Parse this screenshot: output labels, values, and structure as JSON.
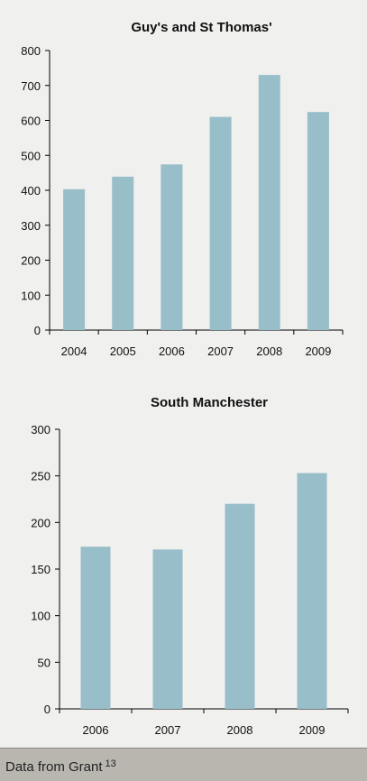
{
  "chart_data": [
    {
      "type": "bar",
      "title": "Guy's and St Thomas'",
      "categories": [
        "2004",
        "2005",
        "2006",
        "2007",
        "2008",
        "2009"
      ],
      "values": [
        403,
        439,
        474,
        610,
        730,
        624
      ],
      "ylim": [
        0,
        800
      ],
      "yticks": [
        0,
        100,
        200,
        300,
        400,
        500,
        600,
        700,
        800
      ],
      "grid": false,
      "bar_color": "#97bec9"
    },
    {
      "type": "bar",
      "title": "South Manchester",
      "categories": [
        "2006",
        "2007",
        "2008",
        "2009"
      ],
      "values": [
        174,
        171,
        220,
        253
      ],
      "ylim": [
        0,
        300
      ],
      "yticks": [
        0,
        50,
        100,
        150,
        200,
        250,
        300
      ],
      "grid": false,
      "bar_color": "#97bec9"
    }
  ],
  "footer": {
    "text": "Data from Grant",
    "superscript": "13"
  }
}
